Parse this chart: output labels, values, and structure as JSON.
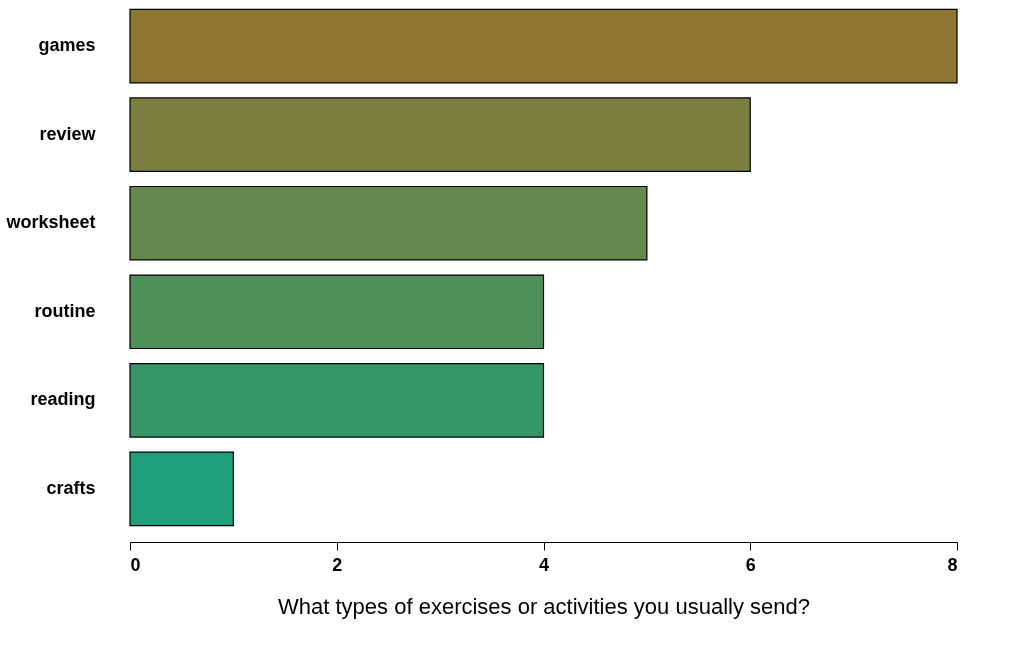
{
  "chart_data": {
    "type": "bar",
    "orientation": "horizontal",
    "xlabel": "What types of exercises or activities you usually send?",
    "categories": [
      "games",
      "review",
      "worksheet",
      "routine",
      "reading",
      "crafts"
    ],
    "values": [
      8,
      6,
      5,
      4,
      4,
      1
    ],
    "colors": [
      "#8f7732",
      "#7a7f40",
      "#65884f",
      "#4d905a",
      "#349667",
      "#1fa07a"
    ],
    "xlim": [
      0,
      8
    ],
    "xticks": [
      0,
      2,
      4,
      6,
      8
    ],
    "grid": false
  }
}
